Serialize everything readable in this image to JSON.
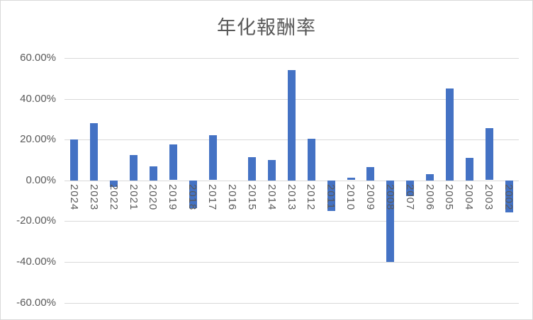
{
  "chart_data": {
    "type": "bar",
    "title": "年化報酬率",
    "categories": [
      "2024",
      "2023",
      "2022",
      "2021",
      "2020",
      "2019",
      "2018",
      "2017",
      "2016",
      "2015",
      "2014",
      "2013",
      "2012",
      "2011",
      "2010",
      "2009",
      "2008",
      "2007",
      "2006",
      "2005",
      "2004",
      "2003",
      "2002"
    ],
    "values": [
      20.0,
      28.0,
      -3.0,
      12.5,
      7.0,
      17.5,
      -13.5,
      22.0,
      0.0,
      11.5,
      10.0,
      54.0,
      20.5,
      -15.0,
      1.2,
      6.5,
      -40.0,
      -7.5,
      3.0,
      45.0,
      11.0,
      25.5,
      -15.5
    ],
    "unit": "%",
    "xlabel": "",
    "ylabel": "",
    "ylim": [
      -60,
      60
    ],
    "ytick_step": 20,
    "ytick_labels": [
      "60.00%",
      "40.00%",
      "20.00%",
      "0.00%",
      "-20.00%",
      "-40.00%",
      "-60.00%"
    ],
    "grid": true,
    "legend": "none",
    "bar_color": "#4472c4",
    "gridline_color": "#d9d9d9",
    "axis_text_color": "#595959",
    "title_color": "#595959"
  }
}
